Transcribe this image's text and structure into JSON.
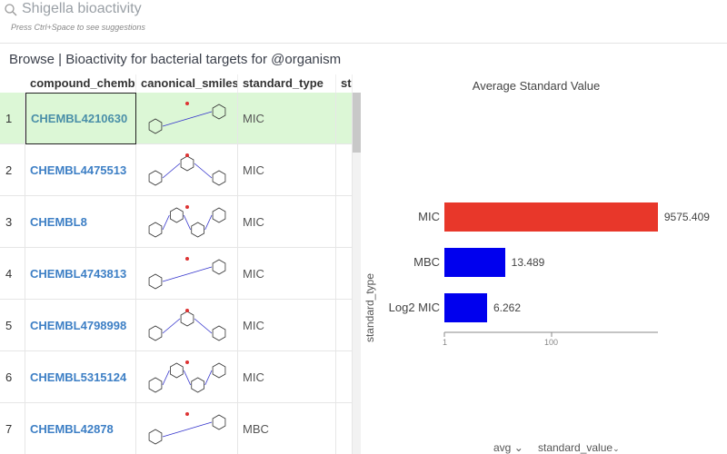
{
  "search": {
    "query": "Shigella bioactivity",
    "hint": "Press Ctrl+Space to see suggestions"
  },
  "title": "Browse | Bioactivity for bacterial targets for @organism",
  "columns": [
    "compound_chembl_id",
    "canonical_smiles",
    "standard_type",
    "standard_value"
  ],
  "rows": [
    {
      "n": "1",
      "id": "CHEMBL4210630",
      "type": "MIC"
    },
    {
      "n": "2",
      "id": "CHEMBL4475513",
      "type": "MIC"
    },
    {
      "n": "3",
      "id": "CHEMBL8",
      "type": "MIC"
    },
    {
      "n": "4",
      "id": "CHEMBL4743813",
      "type": "MIC"
    },
    {
      "n": "5",
      "id": "CHEMBL4798998",
      "type": "MIC"
    },
    {
      "n": "6",
      "id": "CHEMBL5315124",
      "type": "MIC"
    },
    {
      "n": "7",
      "id": "CHEMBL42878",
      "type": "MBC"
    }
  ],
  "chart_data": {
    "type": "bar",
    "orientation": "horizontal",
    "title": "Average Standard Value",
    "ylabel": "standard_type",
    "xscale": "log",
    "categories": [
      "MIC",
      "MBC",
      "Log2 MIC"
    ],
    "values": [
      9575.409,
      13.489,
      6.262
    ],
    "value_labels": [
      "9575.409",
      "13.489",
      "6.262"
    ],
    "colors": [
      "#e8372a",
      "#0000ee",
      "#0000ee"
    ],
    "xticks": [
      "1",
      "100"
    ],
    "xlim": [
      1,
      10000
    ]
  },
  "footer": {
    "agg": "avg",
    "column": "standard_value"
  }
}
